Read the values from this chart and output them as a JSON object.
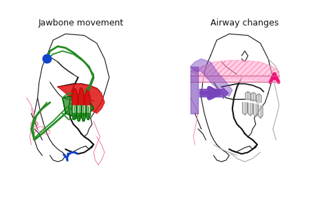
{
  "title_left": "Jawbone movement",
  "title_right": "Airway changes",
  "bg_color": "#ffffff",
  "fig_width": 4.74,
  "fig_height": 2.98,
  "dpi": 100,
  "title_fontsize": 9,
  "title_color": "#111111",
  "skull_color": "#111111",
  "green_color": "#228B22",
  "darkgreen_color": "#006400",
  "red_color": "#dd1111",
  "blue_color": "#1144cc",
  "pink_color": "#ff88bb",
  "pink_hatch_color": "#ff66aa",
  "purple_color": "#7744bb",
  "magenta_color": "#ee1177",
  "gray_color": "#888888",
  "lightpink_color": "#ffaacc"
}
